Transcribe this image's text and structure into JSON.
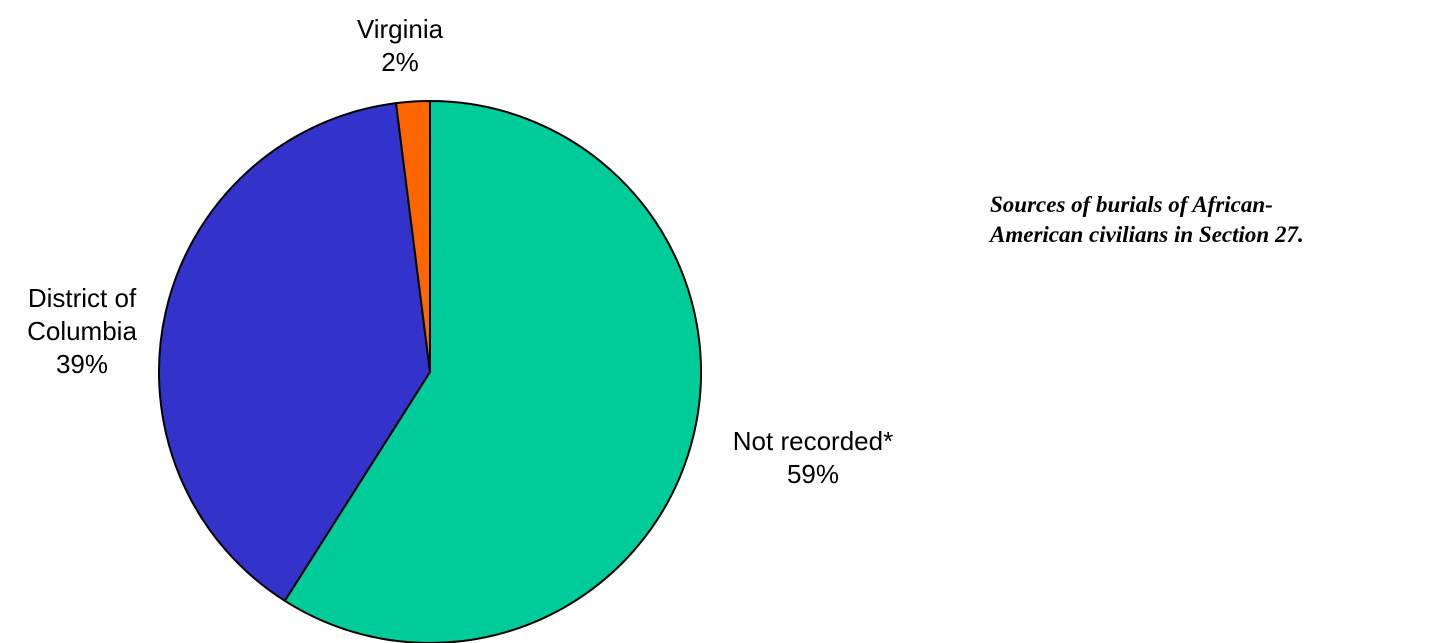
{
  "chart_data": {
    "type": "pie",
    "categories": [
      "Not recorded*",
      "District of Columbia",
      "Virginia"
    ],
    "values": [
      59,
      39,
      2
    ],
    "value_labels": [
      "59%",
      "39%",
      "2%"
    ],
    "colors": [
      "#00CC99",
      "#3333CC",
      "#FF6600"
    ],
    "legend": "none",
    "slice_labels": [
      {
        "lines": [
          "Not recorded*"
        ],
        "pct": "59%"
      },
      {
        "lines": [
          "District of",
          "Columbia"
        ],
        "pct": "39%"
      },
      {
        "lines": [
          "Virginia"
        ],
        "pct": "2%"
      }
    ]
  },
  "caption": {
    "line1": "Sources of burials of African-",
    "line2": "American civilians in Section 27."
  }
}
